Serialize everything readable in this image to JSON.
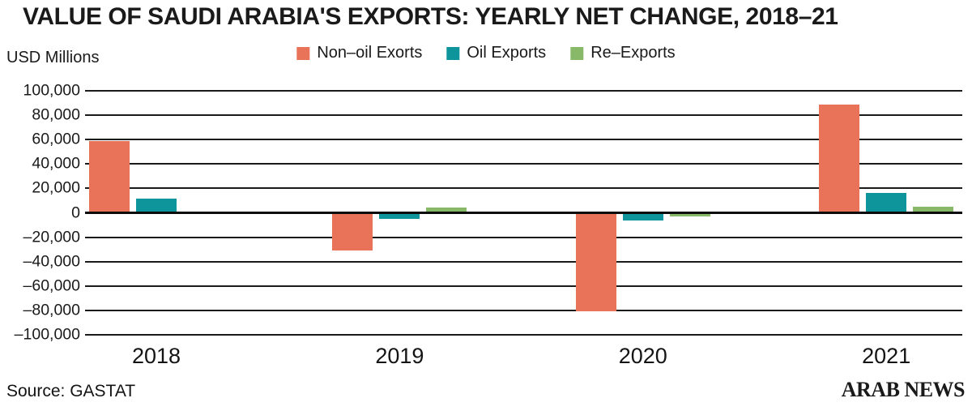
{
  "title": "VALUE OF SAUDI ARABIA'S EXPORTS: YEARLY NET CHANGE, 2018–21",
  "axis_unit_label": "USD Millions",
  "source": "Source: GASTAT",
  "brand": "ARAB NEWS",
  "colors": {
    "non_oil": "#E97358",
    "oil": "#0E949B",
    "re_exports": "#88B968",
    "gridline": "#1b1b1b",
    "text": "#1a1a1a"
  },
  "legend": [
    {
      "label": "Non–oil Exorts",
      "color": "#E97358"
    },
    {
      "label": "Oil Exports",
      "color": "#0E949B"
    },
    {
      "label": "Re–Exports",
      "color": "#88B968"
    }
  ],
  "chart_data": {
    "type": "bar",
    "title": "VALUE OF SAUDI ARABIA'S EXPORTS: YEARLY NET CHANGE, 2018–21",
    "ylabel": "USD Millions",
    "categories": [
      "2018",
      "2019",
      "2020",
      "2021"
    ],
    "series": [
      {
        "name": "Non–oil Exorts",
        "color": "#E97358",
        "values": [
          59000,
          -31000,
          -81000,
          89000
        ]
      },
      {
        "name": "Oil Exports",
        "color": "#0E949B",
        "values": [
          11500,
          -5000,
          -6000,
          16000
        ]
      },
      {
        "name": "Re–Exports",
        "color": "#88B968",
        "values": [
          0,
          4500,
          -3000,
          5000
        ]
      }
    ],
    "ylim": [
      -100000,
      100000
    ],
    "ytick_step": 20000,
    "y_tick_labels": [
      "100,000",
      "80,000",
      "60,000",
      "40,000",
      "20,000",
      "0",
      "–20,000",
      "–40,000",
      "–60,000",
      "–80,000",
      "–100,000"
    ],
    "grid": true,
    "legend_position": "top"
  }
}
